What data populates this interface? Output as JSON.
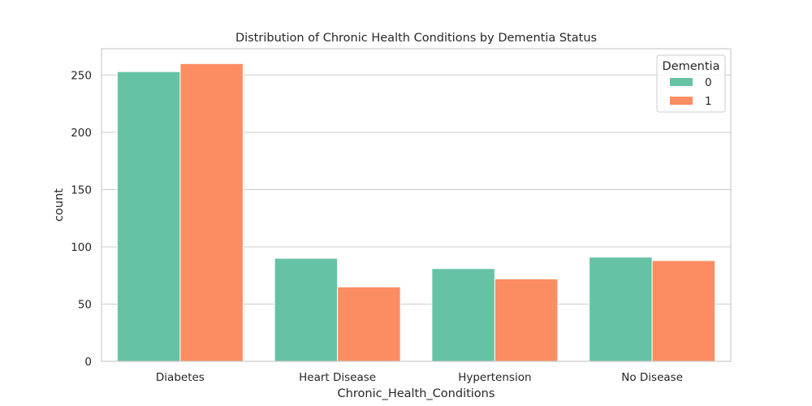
{
  "chart_data": {
    "type": "bar",
    "title": "Distribution of Chronic Health Conditions by Dementia Status",
    "xlabel": "Chronic_Health_Conditions",
    "ylabel": "count",
    "categories": [
      "Diabetes",
      "Heart Disease",
      "Hypertension",
      "No Disease"
    ],
    "series": [
      {
        "name": "0",
        "color": "#66c2a5",
        "values": [
          253,
          90,
          81,
          91
        ]
      },
      {
        "name": "1",
        "color": "#fc8d62",
        "values": [
          260,
          65,
          72,
          88
        ]
      }
    ],
    "ylim": [
      0,
      273
    ],
    "yticks": [
      0,
      50,
      100,
      150,
      200,
      250
    ],
    "grid": "horizontal",
    "legend": {
      "title": "Dementia",
      "position": "top-right"
    }
  }
}
